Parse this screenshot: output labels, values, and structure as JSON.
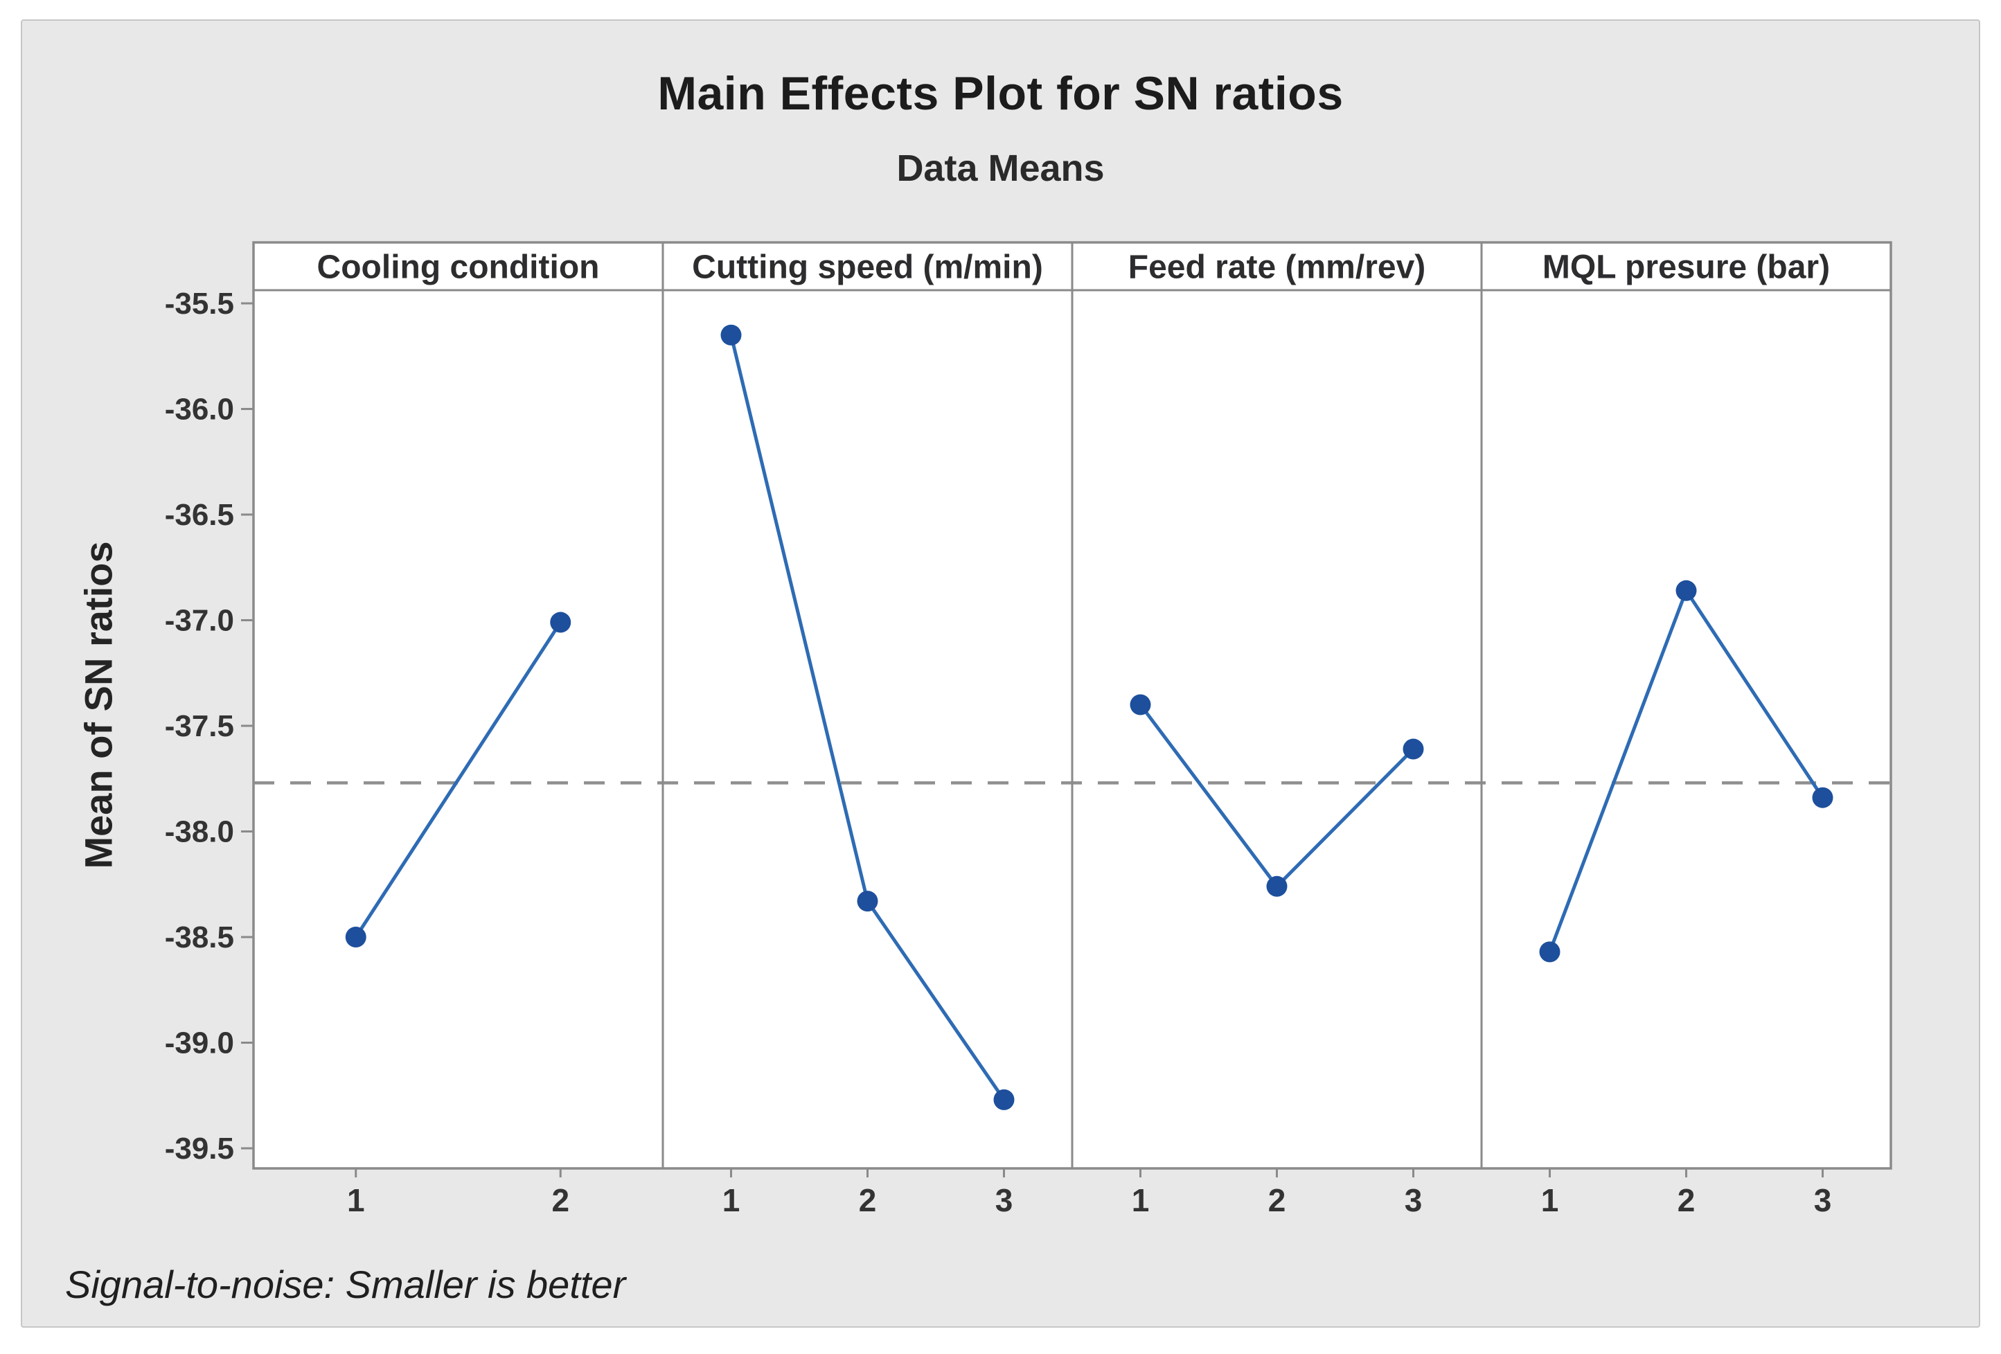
{
  "chart_data": {
    "type": "line",
    "title": "Main Effects Plot for SN ratios",
    "subtitle": "Data Means",
    "ylabel": "Mean of SN ratios",
    "footnote": "Signal-to-noise: Smaller is better",
    "ylim": [
      -39.6,
      -35.2
    ],
    "yticks": [
      -35.5,
      -36.0,
      -36.5,
      -37.0,
      -37.5,
      -38.0,
      -38.5,
      -39.0,
      -39.5
    ],
    "reference_line_mean": -37.77,
    "grid": false,
    "legend": "none",
    "panels": [
      {
        "label": "Cooling condition",
        "categories": [
          "1",
          "2"
        ],
        "values": [
          -38.5,
          -37.01
        ]
      },
      {
        "label": "Cutting speed (m/min)",
        "categories": [
          "1",
          "2",
          "3"
        ],
        "values": [
          -35.65,
          -38.33,
          -39.27
        ]
      },
      {
        "label": "Feed rate (mm/rev)",
        "categories": [
          "1",
          "2",
          "3"
        ],
        "values": [
          -37.4,
          -38.26,
          -37.61
        ]
      },
      {
        "label": "MQL presure (bar)",
        "categories": [
          "1",
          "2",
          "3"
        ],
        "values": [
          -38.57,
          -36.86,
          -37.84
        ]
      }
    ],
    "colors": {
      "marker": "#1d4f9c",
      "line": "#2e6bb4",
      "reference_line": "#8f8f8f",
      "frame": "#8a8a8a",
      "plot_background": "#ffffff",
      "canvas_background": "#e8e8e8",
      "header_text": "#2d2d30",
      "tick_text": "#333333"
    }
  }
}
